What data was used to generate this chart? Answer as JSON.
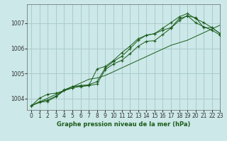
{
  "title": "Graphe pression niveau de la mer (hPa)",
  "bg_color": "#cce8e8",
  "grid_color": "#aacccc",
  "line_color": "#1a5c1a",
  "marker_color": "#1a5c1a",
  "xlim": [
    -0.5,
    23
  ],
  "ylim": [
    1003.55,
    1007.75
  ],
  "xticks": [
    0,
    1,
    2,
    3,
    4,
    5,
    6,
    7,
    8,
    9,
    10,
    11,
    12,
    13,
    14,
    15,
    16,
    17,
    18,
    19,
    20,
    21,
    22,
    23
  ],
  "yticks": [
    1004,
    1005,
    1006,
    1007
  ],
  "x": [
    0,
    1,
    2,
    3,
    4,
    5,
    6,
    7,
    8,
    9,
    10,
    11,
    12,
    13,
    14,
    15,
    16,
    17,
    18,
    19,
    20,
    21,
    22,
    23
  ],
  "pressure1": [
    1003.72,
    1003.85,
    1003.9,
    1004.08,
    1004.32,
    1004.42,
    1004.5,
    1004.52,
    1004.58,
    1005.15,
    1005.38,
    1005.52,
    1005.78,
    1006.08,
    1006.28,
    1006.3,
    1006.55,
    1006.8,
    1007.1,
    1007.3,
    1007.02,
    1006.85,
    1006.72,
    1006.52
  ],
  "pressure2": [
    1003.72,
    1003.88,
    1003.95,
    1004.1,
    1004.35,
    1004.48,
    1004.52,
    1004.55,
    1004.68,
    1005.22,
    1005.48,
    1005.68,
    1005.98,
    1006.32,
    1006.52,
    1006.58,
    1006.8,
    1007.02,
    1007.25,
    1007.38,
    1007.18,
    1007.02,
    1006.82,
    1006.58
  ],
  "pressure3": [
    1003.72,
    1004.02,
    1004.18,
    1004.22,
    1004.32,
    1004.48,
    1004.48,
    1004.52,
    1005.18,
    1005.28,
    1005.52,
    1005.82,
    1006.08,
    1006.38,
    1006.52,
    1006.58,
    1006.72,
    1006.82,
    1007.18,
    1007.28,
    1007.22,
    1006.82,
    1006.82,
    1006.58
  ],
  "trend": [
    1003.72,
    1003.87,
    1004.02,
    1004.17,
    1004.32,
    1004.47,
    1004.62,
    1004.77,
    1004.82,
    1004.92,
    1005.07,
    1005.22,
    1005.37,
    1005.52,
    1005.67,
    1005.82,
    1005.97,
    1006.12,
    1006.22,
    1006.32,
    1006.47,
    1006.62,
    1006.77,
    1006.92
  ]
}
